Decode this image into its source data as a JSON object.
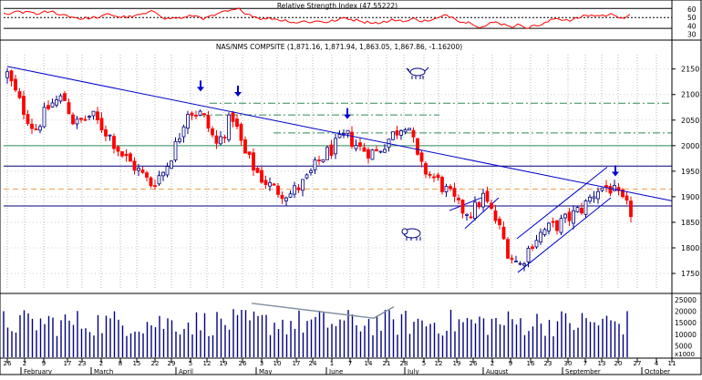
{
  "chart_data": {
    "type": "candlestick",
    "title": "NAS/NMS COMPSITE (1,871.16, 1,871.94, 1,863.05, 1,867.86, -1.16200)",
    "ohlc": {
      "open": "1,871.16",
      "high": "1,871.94",
      "low": "1,863.05",
      "close": "1,867.86",
      "change": "-1.16200"
    },
    "price_ticks": [
      2150,
      2100,
      2050,
      2000,
      1950,
      1900,
      1850,
      1800,
      1750
    ],
    "price_range": [
      1718,
      2178
    ],
    "rsi_panel": {
      "title": "Relative Strength Index (47.55222)",
      "ticks": [
        60,
        50,
        40,
        30
      ],
      "range": [
        25,
        70
      ],
      "reference_lines": [
        61,
        50,
        37
      ]
    },
    "volume_panel": {
      "ticks": [
        "25000",
        "20000",
        "15000",
        "10000",
        "5000"
      ],
      "unit": "x1000"
    },
    "x_axis": {
      "day_ticks": [
        "26",
        "2",
        "9",
        "17",
        "23",
        "2",
        "8",
        "15",
        "22",
        "29",
        "5",
        "12",
        "19",
        "26",
        "3",
        "10",
        "17",
        "24",
        "1",
        "7",
        "14",
        "21",
        "28",
        "5",
        "12",
        "19",
        "26",
        "2",
        "9",
        "16",
        "23",
        "30",
        "7",
        "13",
        "20",
        "27",
        "4",
        "11"
      ],
      "months": [
        "February",
        "March",
        "April",
        "May",
        "June",
        "July",
        "August",
        "September",
        "October"
      ]
    },
    "horizontal_lines": [
      {
        "price": 2083,
        "color": "#2e8b57",
        "style": "dash-dot"
      },
      {
        "price": 2060,
        "color": "#2e8b57",
        "style": "dash-dot"
      },
      {
        "price": 2025,
        "color": "#2e8b57",
        "style": "dash-dot"
      },
      {
        "price": 2000,
        "color": "#2e8b57",
        "style": "solid"
      },
      {
        "price": 1960,
        "color": "#000080",
        "style": "solid"
      },
      {
        "price": 1915,
        "color": "#f0a050",
        "style": "dashed"
      },
      {
        "price": 1882,
        "color": "#000080",
        "style": "solid"
      }
    ],
    "trendline": {
      "from_price": 2155,
      "to_price": 1892
    },
    "arrows_at_days": [
      "April 9",
      "April 24",
      "June 7",
      "September 19"
    ],
    "colors": {
      "up_candle": "#000080",
      "down_candle": "#ff0000",
      "volume": "#000080",
      "rsi_line": "#ff0000",
      "trendline": "#0000cc"
    }
  }
}
